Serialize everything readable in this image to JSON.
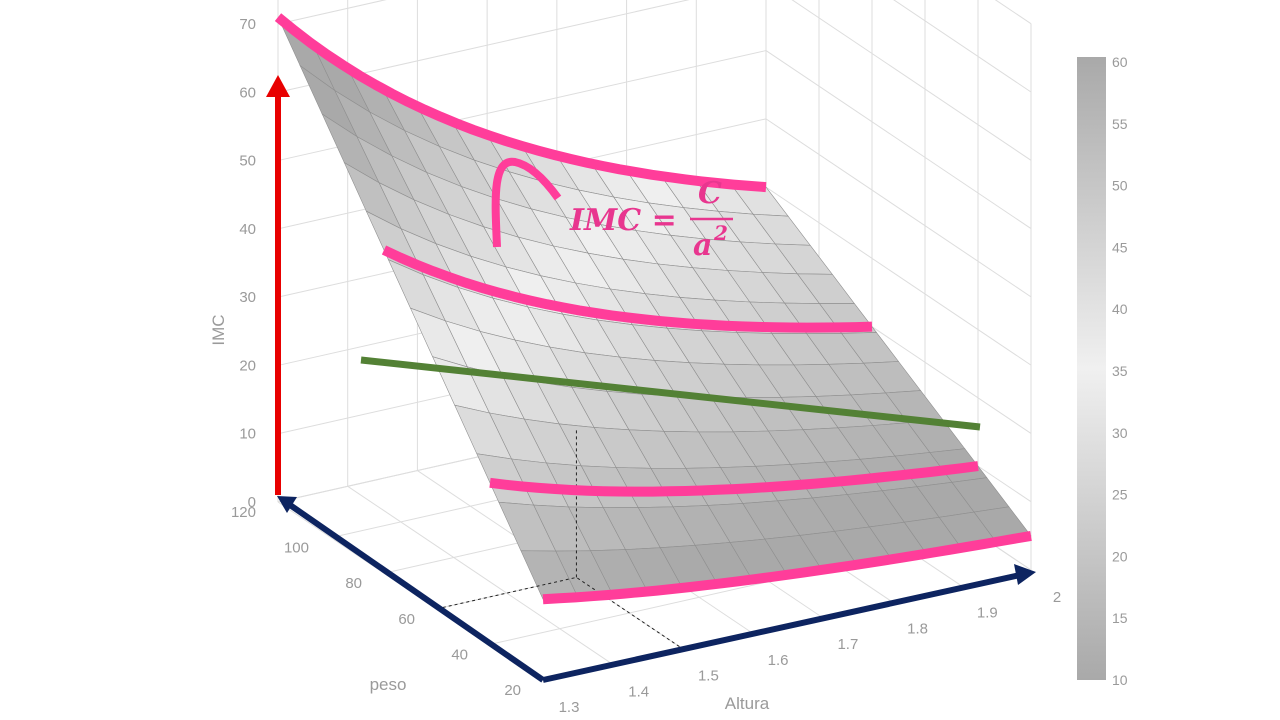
{
  "chart_data": {
    "type": "surface",
    "xlabel": "Altura",
    "ylabel": "peso",
    "zlabel": "IMC",
    "x_ticks": [
      "1.3",
      "1.4",
      "1.5",
      "1.6",
      "1.7",
      "1.8",
      "1.9",
      "2"
    ],
    "y_ticks": [
      "20",
      "40",
      "60",
      "80",
      "100",
      "120"
    ],
    "z_ticks": [
      "0",
      "10",
      "20",
      "30",
      "40",
      "50",
      "60",
      "70"
    ],
    "colorbar_ticks": [
      "10",
      "15",
      "20",
      "25",
      "30",
      "35",
      "40",
      "45",
      "50",
      "55",
      "60"
    ],
    "xlim": [
      1.3,
      2.0
    ],
    "ylim": [
      20,
      120
    ],
    "zlim": [
      0,
      70
    ],
    "colorbar_range": [
      10,
      60
    ],
    "grid": true,
    "colorbar": "right",
    "surface_formula": "IMC = peso / Altura^2",
    "annotation": {
      "lhs": "IMC =",
      "numerator": "C",
      "denominator": "a",
      "exponent": "2"
    },
    "colors": {
      "z_arrow": "#e80000",
      "xy_arrows": "#0d2460",
      "highlight_curves": "#ff3d9a",
      "trend_line": "#538135",
      "formula": "#e8368f"
    }
  }
}
